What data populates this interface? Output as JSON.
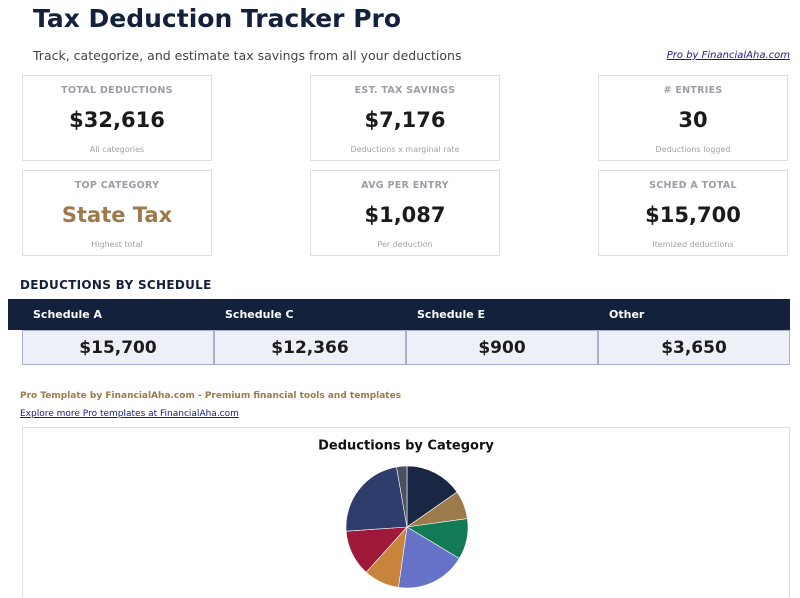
{
  "header": {
    "title": "Tax Deduction Tracker Pro",
    "subtitle": "Track, categorize, and estimate tax savings from all your deductions",
    "link": "Pro by FinancialAha.com"
  },
  "cards": [
    {
      "label": "TOTAL DEDUCTIONS",
      "value": "$32,616",
      "note": "All categories"
    },
    {
      "label": "EST. TAX SAVINGS",
      "value": "$7,176",
      "note": "Deductions x marginal rate"
    },
    {
      "label": "# ENTRIES",
      "value": "30",
      "note": "Deductions logged"
    },
    {
      "label": "TOP CATEGORY",
      "value": "State Tax",
      "note": "Highest total"
    },
    {
      "label": "AVG PER ENTRY",
      "value": "$1,087",
      "note": "Per deduction"
    },
    {
      "label": "SCHED A TOTAL",
      "value": "$15,700",
      "note": "Itemized deductions"
    }
  ],
  "schedule": {
    "title": "DEDUCTIONS BY SCHEDULE",
    "headers": [
      "Schedule A",
      "Schedule C",
      "Schedule E",
      "Other"
    ],
    "values": [
      "$15,700",
      "$12,366",
      "$900",
      "$3,650"
    ]
  },
  "footer": {
    "promo": "Pro Template by FinancialAha.com - Premium financial tools and templates",
    "link": "Explore more Pro templates at FinancialAha.com"
  },
  "chart_data": {
    "type": "pie",
    "title": "Deductions by Category",
    "values": [
      4990,
      2446,
      3533,
      6070,
      3080,
      3986,
      7610,
      900
    ],
    "colors": [
      "#1a2744",
      "#9c7a4b",
      "#127a55",
      "#6672c8",
      "#c8843c",
      "#a0183a",
      "#2e3d6b",
      "#4a5060"
    ]
  }
}
